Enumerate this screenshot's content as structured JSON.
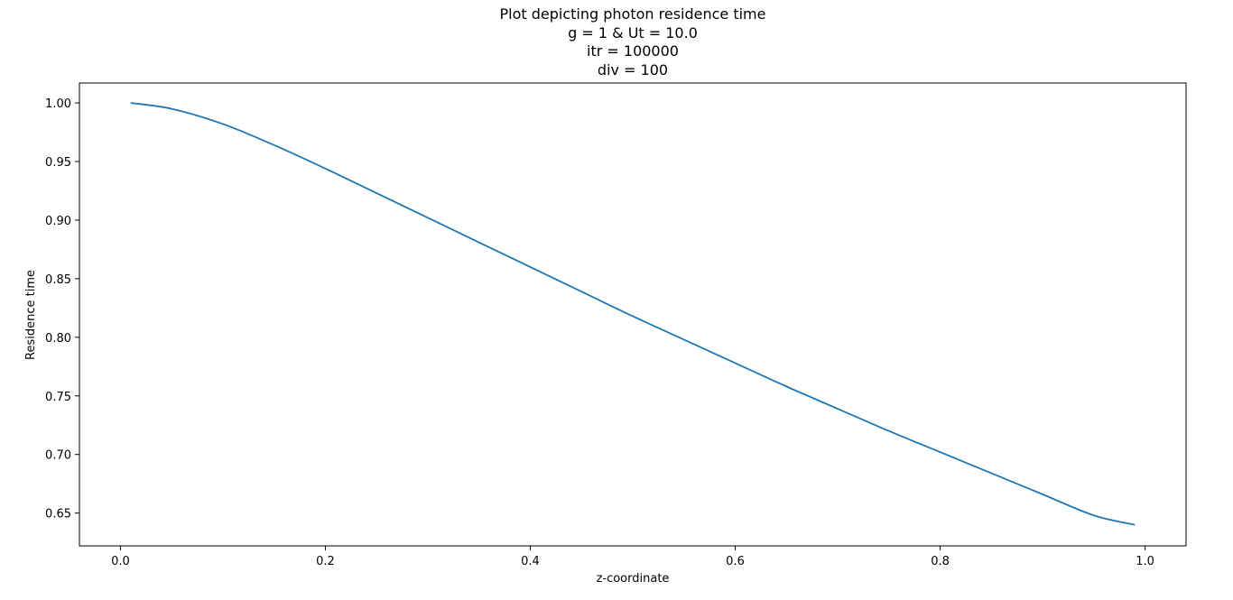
{
  "chart_data": {
    "type": "line",
    "title_lines": [
      "Plot depicting photon residence time",
      "g = 1 & Ut = 10.0",
      "itr = 100000",
      "div = 100"
    ],
    "xlabel": "z-coordinate",
    "ylabel": "Residence time",
    "xlim": [
      -0.04,
      1.04
    ],
    "ylim": [
      0.622,
      1.017
    ],
    "x_ticks": [
      0.0,
      0.2,
      0.4,
      0.6,
      0.8,
      1.0
    ],
    "x_tick_labels": [
      "0.0",
      "0.2",
      "0.4",
      "0.6",
      "0.8",
      "1.0"
    ],
    "y_ticks": [
      0.65,
      0.7,
      0.75,
      0.8,
      0.85,
      0.9,
      0.95,
      1.0
    ],
    "y_tick_labels": [
      "0.65",
      "0.70",
      "0.75",
      "0.80",
      "0.85",
      "0.90",
      "0.95",
      "1.00"
    ],
    "grid": false,
    "series": [
      {
        "color": "#1f77b4",
        "x": [
          0.01,
          0.05,
          0.1,
          0.15,
          0.2,
          0.25,
          0.3,
          0.35,
          0.4,
          0.45,
          0.5,
          0.55,
          0.6,
          0.65,
          0.7,
          0.75,
          0.8,
          0.85,
          0.9,
          0.95,
          0.99
        ],
        "y": [
          1.0,
          0.995,
          0.982,
          0.964,
          0.944,
          0.923,
          0.902,
          0.881,
          0.86,
          0.839,
          0.818,
          0.798,
          0.778,
          0.758,
          0.739,
          0.72,
          0.702,
          0.684,
          0.666,
          0.648,
          0.64
        ]
      }
    ]
  }
}
